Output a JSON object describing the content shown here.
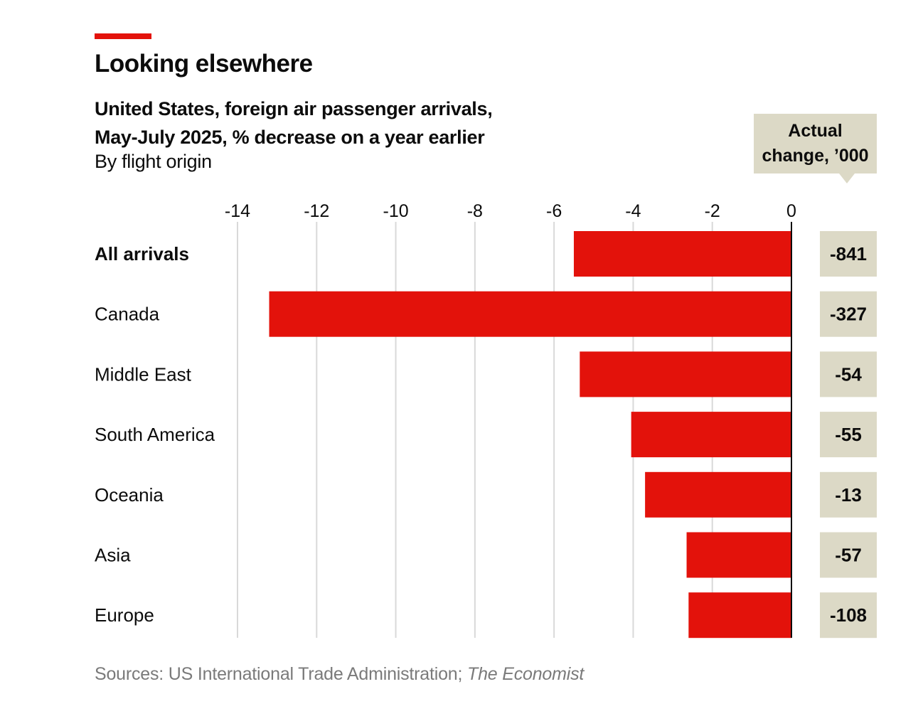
{
  "header": {
    "title": "Looking elsewhere",
    "subtitle_line1": "United States, foreign air passenger arrivals,",
    "subtitle_line2": "May-July 2025, % decrease on a year earlier",
    "subtitle_line3": "By flight origin"
  },
  "callout": {
    "line1": "Actual",
    "line2": "change, ’000"
  },
  "footer": {
    "sources_prefix": "Sources: US International Trade Administration; ",
    "sources_italic": "The Economist"
  },
  "colors": {
    "accent": "#e3120b",
    "bar": "#e3120b",
    "label_box": "#dcd9c6",
    "grid": "#d9d9d9",
    "axis": "#0c0c0c",
    "source_text": "#7a7a7a"
  },
  "chart_data": {
    "type": "bar",
    "orientation": "horizontal",
    "title": "Looking elsewhere",
    "xlabel": "",
    "ylabel": "",
    "xlim": [
      -14,
      0
    ],
    "xticks": [
      -14,
      -12,
      -10,
      -8,
      -6,
      -4,
      -2,
      0
    ],
    "xtick_labels": [
      "-14",
      "-12",
      "-10",
      "-8",
      "-6",
      "-4",
      "-2",
      "0"
    ],
    "grid": true,
    "categories": [
      "All arrivals",
      "Canada",
      "Middle East",
      "South America",
      "Oceania",
      "Asia",
      "Europe"
    ],
    "bold_categories": [
      "All arrivals"
    ],
    "values": [
      -5.5,
      -13.2,
      -5.35,
      -4.05,
      -3.7,
      -2.65,
      -2.6
    ],
    "actual_change_label": "Actual change, ’000",
    "actual_change": [
      "-841",
      "-327",
      "-54",
      "-55",
      "-13",
      "-57",
      "-108"
    ]
  }
}
